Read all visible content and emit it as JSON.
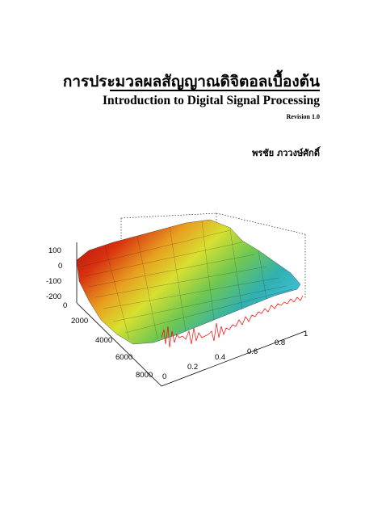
{
  "document": {
    "title_thai": "การประมวลผลสัญญาณดิจิตอลเบื้องต้น",
    "title_english": "Introduction to Digital Signal Processing",
    "revision": "Revision 1.0",
    "author": "พรชัย ภววงษ์ศักดิ์"
  },
  "figure": {
    "z_ticks": [
      "100",
      "0",
      "-100",
      "-200"
    ],
    "y_ticks": [
      "0",
      "2000",
      "4000",
      "6000",
      "8000"
    ],
    "x_ticks": [
      "0",
      "0.2",
      "0.4",
      "0.6",
      "0.8",
      "1"
    ],
    "colors": {
      "surface_high": "#b01010",
      "surface_mid": "#d8e030",
      "surface_low": "#30b0b0",
      "signal": "#ff0000"
    }
  }
}
